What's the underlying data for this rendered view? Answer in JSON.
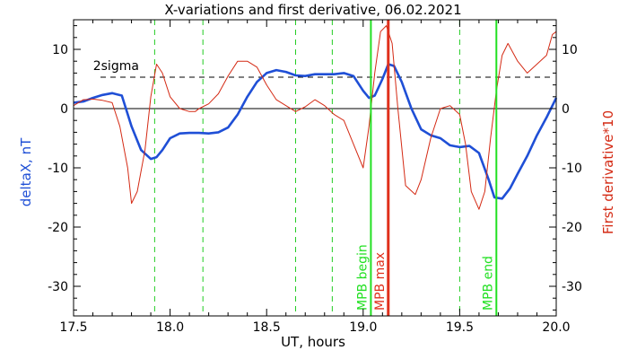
{
  "chart_data": {
    "type": "line",
    "title": "X-variations and first derivative, 06.02.2021",
    "xlabel": "UT, hours",
    "ylabel_left": "deltaX, nT",
    "ylabel_right": "First derivative*10",
    "xlim": [
      17.5,
      20.0
    ],
    "ylim": [
      -35,
      15
    ],
    "xticks": [
      "17.5",
      "18.0",
      "18.5",
      "19.0",
      "19.5",
      "20.0"
    ],
    "yticks": [
      "10",
      "0",
      "-10",
      "-20",
      "-30"
    ],
    "colors": {
      "deltaX": "#1f4fd6",
      "derivative": "#d42a14",
      "mpb": "#22e022",
      "mpb_max": "#e0301c",
      "sigma": "#000000",
      "dashed_green": "#22cc22"
    },
    "series": [
      {
        "axis": "left",
        "x": [
          17.5,
          17.55,
          17.6,
          17.65,
          17.7,
          17.75,
          17.8,
          17.85,
          17.9,
          17.93,
          17.96,
          18.0,
          18.05,
          18.1,
          18.15,
          18.2,
          18.25,
          18.3,
          18.35,
          18.4,
          18.45,
          18.5,
          18.55,
          18.6,
          18.65,
          18.7,
          18.75,
          18.8,
          18.85,
          18.9,
          18.95,
          19.0,
          19.03,
          19.06,
          19.1,
          19.13,
          19.16,
          19.2,
          19.25,
          19.3,
          19.35,
          19.4,
          19.45,
          19.5,
          19.55,
          19.6,
          19.65,
          19.68,
          19.72,
          19.76,
          19.8,
          19.85,
          19.9,
          19.95,
          20.0
        ],
        "values": [
          1,
          1.2,
          1.8,
          2.3,
          2.6,
          2.2,
          -3,
          -7,
          -8.5,
          -8.2,
          -7,
          -5,
          -4.2,
          -4.1,
          -4.1,
          -4.2,
          -4,
          -3.2,
          -1,
          2,
          4.5,
          6,
          6.5,
          6.2,
          5.6,
          5.5,
          5.8,
          5.8,
          5.8,
          6,
          5.5,
          3,
          1.8,
          2.2,
          5,
          7.5,
          7.2,
          4.5,
          0,
          -3.5,
          -4.5,
          -5,
          -6.2,
          -6.5,
          -6.3,
          -7.5,
          -12,
          -15,
          -15.2,
          -13.5,
          -11,
          -8,
          -4.5,
          -1.5,
          1.8
        ]
      },
      {
        "axis": "left",
        "x": [
          17.5,
          17.55,
          17.6,
          17.65,
          17.7,
          17.74,
          17.78,
          17.8,
          17.83,
          17.87,
          17.9,
          17.93,
          17.96,
          18.0,
          18.05,
          18.1,
          18.13,
          18.15,
          18.2,
          18.25,
          18.3,
          18.35,
          18.4,
          18.45,
          18.5,
          18.55,
          18.6,
          18.65,
          18.7,
          18.75,
          18.8,
          18.85,
          18.9,
          18.95,
          19.0,
          19.03,
          19.06,
          19.09,
          19.12,
          19.15,
          19.18,
          19.22,
          19.27,
          19.3,
          19.35,
          19.4,
          19.45,
          19.5,
          19.53,
          19.56,
          19.6,
          19.63,
          19.66,
          19.69,
          19.72,
          19.75,
          19.8,
          19.85,
          19.9,
          19.95,
          19.98,
          20.0
        ],
        "values": [
          0.5,
          1.5,
          1.6,
          1.4,
          1,
          -3,
          -10,
          -16,
          -14,
          -7,
          2,
          7.5,
          6,
          2,
          0,
          -0.5,
          -0.5,
          0,
          0.8,
          2.5,
          5.5,
          8,
          8,
          7,
          4,
          1.5,
          0.5,
          -0.5,
          0.3,
          1.5,
          0.5,
          -1,
          -2,
          -6,
          -10,
          -3,
          6,
          13,
          14,
          11,
          0,
          -13,
          -14.5,
          -12,
          -5,
          0,
          0.5,
          -1,
          -6,
          -14,
          -17,
          -14,
          -5,
          3,
          9,
          11,
          8,
          6,
          7.5,
          9,
          12.5,
          13
        ]
      }
    ],
    "sigma_level": 5.3,
    "sigma_label": "2sigma",
    "dashed_green_x": [
      17.92,
      18.17,
      18.65,
      18.84,
      19.5
    ],
    "markers": [
      {
        "x": 19.04,
        "label": "MPB begin",
        "kind": "mpb"
      },
      {
        "x": 19.13,
        "label": "MPB max",
        "kind": "mpb_max"
      },
      {
        "x": 19.69,
        "label": "MPB end",
        "kind": "mpb"
      }
    ]
  }
}
